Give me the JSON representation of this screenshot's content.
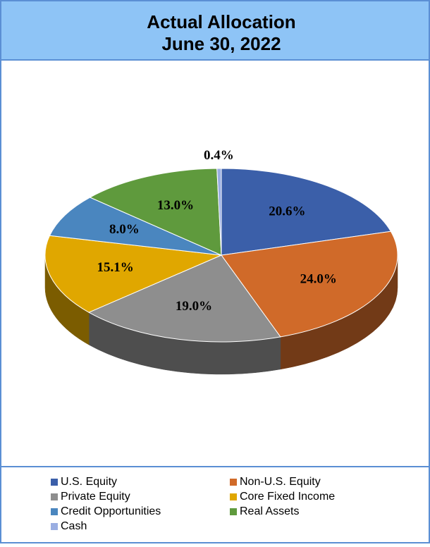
{
  "chart_data": {
    "type": "pie",
    "title": "Actual Allocation",
    "subtitle": "June 30, 2022",
    "categories": [
      "U.S. Equity",
      "Non-U.S. Equity",
      "Private Equity",
      "Core Fixed Income",
      "Credit Opportunities",
      "Real Assets",
      "Cash"
    ],
    "values": [
      20.6,
      24.0,
      19.0,
      15.1,
      8.0,
      13.0,
      0.4
    ],
    "value_labels": [
      "20.6%",
      "24.0%",
      "19.0%",
      "15.1%",
      "8.0%",
      "13.0%",
      "0.4%"
    ],
    "colors": [
      "#3b5fa9",
      "#d06a29",
      "#8e8e8e",
      "#e0a700",
      "#4a86bf",
      "#5f9a3d",
      "#9aaee2"
    ],
    "legend": "bottom"
  }
}
